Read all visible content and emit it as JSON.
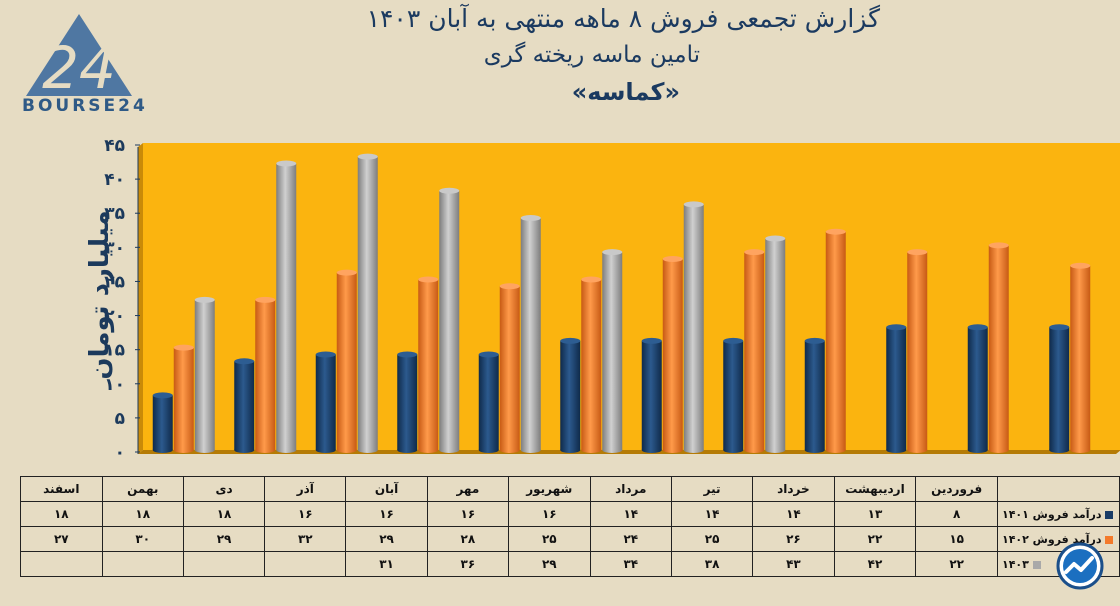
{
  "header": {
    "title_line1": "گزارش تجمعی فروش ۸ ماهه منتهی به آبان ۱۴۰۳",
    "title_line2": "تامین ماسه ریخته گری",
    "title_line3": "«کماسه»"
  },
  "logo": {
    "text": "BOURSE24",
    "mark": "24"
  },
  "colors": {
    "background": "#e6dcc3",
    "plot_bg": "#fbb40f",
    "s1401": "#1a3c66",
    "s1402": "#f47a2a",
    "s1403": "#a9a9a9"
  },
  "chart_data": {
    "type": "bar",
    "ylabel": "میلیارد تومان",
    "ylim": [
      0,
      45
    ],
    "yticks": [
      "۰",
      "۵",
      "۱۰",
      "۱۵",
      "۲۰",
      "۲۵",
      "۳۰",
      "۳۵",
      "۴۰",
      "۴۵"
    ],
    "categories": [
      "فروردین",
      "اردیبهشت",
      "خرداد",
      "تیر",
      "مرداد",
      "شهریور",
      "مهر",
      "آبان",
      "آذر",
      "دی",
      "بهمن",
      "اسفند"
    ],
    "series": [
      {
        "name": "درآمد فروش ۱۴۰۱",
        "values": [
          8,
          13,
          14,
          14,
          14,
          16,
          16,
          16,
          16,
          18,
          18,
          18
        ],
        "labels": [
          "۸",
          "۱۳",
          "۱۴",
          "۱۴",
          "۱۴",
          "۱۶",
          "۱۶",
          "۱۶",
          "۱۶",
          "۱۸",
          "۱۸",
          "۱۸"
        ]
      },
      {
        "name": "درآمد فروش ۱۴۰۲",
        "values": [
          15,
          22,
          26,
          25,
          24,
          25,
          28,
          29,
          32,
          29,
          30,
          27
        ],
        "labels": [
          "۱۵",
          "۲۲",
          "۲۶",
          "۲۵",
          "۲۴",
          "۲۵",
          "۲۸",
          "۲۹",
          "۳۲",
          "۲۹",
          "۳۰",
          "۲۷"
        ]
      },
      {
        "name": "۱۴۰۳",
        "values": [
          22,
          42,
          43,
          38,
          34,
          29,
          36,
          31,
          null,
          null,
          null,
          null
        ],
        "labels": [
          "۲۲",
          "۴۲",
          "۴۳",
          "۳۸",
          "۳۴",
          "۲۹",
          "۳۶",
          "۳۱",
          "",
          "",
          "",
          ""
        ]
      }
    ],
    "grid": false,
    "legend": "table-below"
  }
}
